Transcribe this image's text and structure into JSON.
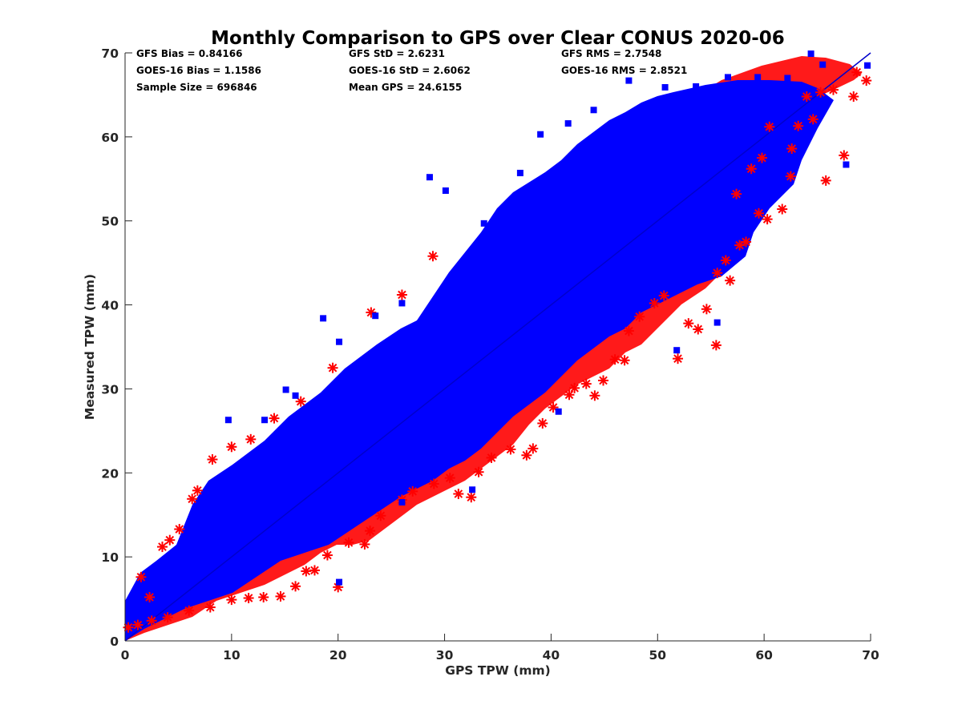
{
  "chart_data": {
    "type": "scatter",
    "title": "Monthly Comparison to GPS over Clear CONUS 2020-06",
    "xlabel": "GPS TPW (mm)",
    "ylabel": "Measured TPW (mm)",
    "xlim": [
      0,
      70
    ],
    "ylim": [
      0,
      70
    ],
    "xticks": [
      "0",
      "10",
      "20",
      "30",
      "40",
      "50",
      "60",
      "70"
    ],
    "yticks": [
      "0",
      "10",
      "20",
      "30",
      "40",
      "50",
      "60",
      "70"
    ],
    "grid": false,
    "legend": "none",
    "reference_line": {
      "x": [
        0,
        70
      ],
      "y": [
        0,
        70
      ],
      "color": "#0000cc"
    },
    "stats": [
      "GFS Bias = 0.84166",
      "GFS StD = 2.6231",
      "GFS RMS = 2.7548",
      "GOES-16 Bias = 1.1586",
      "GOES-16 StD = 2.6062",
      "GOES-16 RMS = 2.8521",
      "Sample Size = 696846",
      "Mean GPS = 24.6155"
    ],
    "series": [
      {
        "marker": "asterisk",
        "color": "#ff0000",
        "points": [
          [
            1.5,
            7.6
          ],
          [
            2.3,
            5.2
          ],
          [
            3.5,
            11.2
          ],
          [
            4.2,
            12.0
          ],
          [
            5.1,
            13.3
          ],
          [
            6.3,
            16.9
          ],
          [
            6.8,
            17.9
          ],
          [
            8.2,
            21.6
          ],
          [
            10.0,
            23.1
          ],
          [
            11.8,
            24.0
          ],
          [
            14.0,
            26.5
          ],
          [
            16.5,
            28.5
          ],
          [
            19.5,
            32.5
          ],
          [
            23.1,
            39.1
          ],
          [
            26.0,
            41.2
          ],
          [
            28.9,
            45.8
          ],
          [
            0.3,
            1.6
          ],
          [
            1.2,
            1.9
          ],
          [
            2.5,
            2.4
          ],
          [
            4.0,
            2.8
          ],
          [
            6.0,
            3.6
          ],
          [
            8.0,
            4.0
          ],
          [
            10.0,
            4.9
          ],
          [
            11.6,
            5.1
          ],
          [
            13.0,
            5.2
          ],
          [
            14.6,
            5.3
          ],
          [
            16.0,
            6.5
          ],
          [
            17.0,
            8.3
          ],
          [
            17.8,
            8.4
          ],
          [
            19.0,
            10.2
          ],
          [
            20.0,
            6.4
          ],
          [
            21.0,
            11.7
          ],
          [
            22.5,
            11.5
          ],
          [
            23.0,
            13.1
          ],
          [
            24.0,
            14.9
          ],
          [
            26.0,
            16.8
          ],
          [
            27.0,
            17.8
          ],
          [
            29.0,
            18.7
          ],
          [
            30.5,
            19.4
          ],
          [
            31.3,
            17.5
          ],
          [
            32.5,
            17.1
          ],
          [
            33.2,
            20.1
          ],
          [
            34.4,
            21.8
          ],
          [
            36.2,
            22.8
          ],
          [
            37.7,
            22.1
          ],
          [
            38.3,
            22.9
          ],
          [
            39.2,
            25.9
          ],
          [
            40.2,
            27.8
          ],
          [
            41.7,
            29.3
          ],
          [
            42.2,
            30.1
          ],
          [
            43.3,
            30.6
          ],
          [
            44.1,
            29.2
          ],
          [
            44.9,
            31.0
          ],
          [
            46.0,
            33.5
          ],
          [
            46.9,
            33.4
          ],
          [
            47.3,
            36.9
          ],
          [
            48.3,
            38.6
          ],
          [
            49.7,
            40.2
          ],
          [
            50.6,
            41.1
          ],
          [
            51.9,
            33.6
          ],
          [
            52.9,
            37.8
          ],
          [
            53.8,
            37.1
          ],
          [
            54.6,
            39.5
          ],
          [
            55.5,
            35.2
          ],
          [
            55.6,
            43.8
          ],
          [
            56.4,
            45.3
          ],
          [
            56.8,
            42.9
          ],
          [
            57.7,
            47.1
          ],
          [
            58.3,
            47.5
          ],
          [
            59.5,
            50.9
          ],
          [
            60.3,
            50.2
          ],
          [
            61.7,
            51.4
          ],
          [
            62.5,
            55.3
          ],
          [
            62.6,
            58.6
          ],
          [
            63.2,
            61.3
          ],
          [
            64.0,
            64.8
          ],
          [
            64.6,
            62.1
          ],
          [
            65.3,
            65.3
          ],
          [
            65.8,
            54.8
          ],
          [
            66.5,
            65.6
          ],
          [
            67.5,
            57.8
          ],
          [
            68.4,
            64.8
          ],
          [
            68.7,
            67.7
          ],
          [
            69.6,
            66.7
          ],
          [
            60.5,
            61.2
          ],
          [
            59.8,
            57.5
          ],
          [
            58.8,
            56.2
          ],
          [
            57.4,
            53.2
          ]
        ]
      },
      {
        "marker": "square",
        "color": "#0000ff",
        "points": [
          [
            9.7,
            26.3
          ],
          [
            13.1,
            26.3
          ],
          [
            15.1,
            29.9
          ],
          [
            16.0,
            29.2
          ],
          [
            18.6,
            38.4
          ],
          [
            20.1,
            35.6
          ],
          [
            23.5,
            38.7
          ],
          [
            26.0,
            40.2
          ],
          [
            28.6,
            55.2
          ],
          [
            30.1,
            53.6
          ],
          [
            33.7,
            49.7
          ],
          [
            37.1,
            55.7
          ],
          [
            39.0,
            60.3
          ],
          [
            41.6,
            61.6
          ],
          [
            44.0,
            63.2
          ],
          [
            47.3,
            66.7
          ],
          [
            50.7,
            65.9
          ],
          [
            53.6,
            66.0
          ],
          [
            56.6,
            67.1
          ],
          [
            59.4,
            67.1
          ],
          [
            62.2,
            67.0
          ],
          [
            64.4,
            69.9
          ],
          [
            65.5,
            68.6
          ],
          [
            67.7,
            56.7
          ],
          [
            69.7,
            68.5
          ],
          [
            55.6,
            37.9
          ],
          [
            51.8,
            34.6
          ],
          [
            40.7,
            27.3
          ],
          [
            20.1,
            7.0
          ],
          [
            32.6,
            18.0
          ],
          [
            26.0,
            16.5
          ],
          [
            15.5,
            12.4
          ]
        ]
      }
    ]
  }
}
